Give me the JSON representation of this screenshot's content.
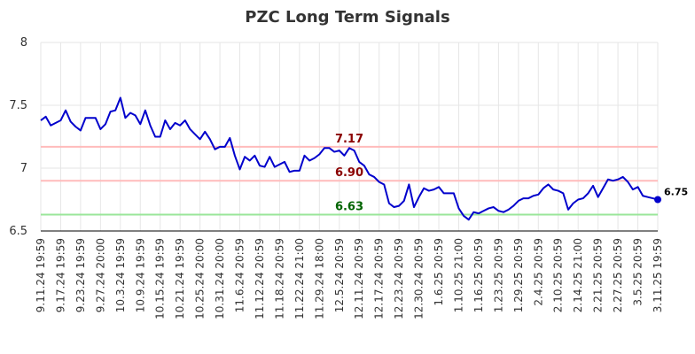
{
  "chart_data": {
    "type": "line",
    "title": "PZC Long Term Signals",
    "xlabel": "",
    "ylabel": "",
    "ylim": [
      6.5,
      8
    ],
    "y_ticks": [
      "6.5",
      "7",
      "7.5",
      "8"
    ],
    "x_tick_labels": [
      "9.11.24 19:59",
      "9.17.24 19:59",
      "9.23.24 19:59",
      "9.27.24 20:00",
      "10.3.24 19:59",
      "10.9.24 19:59",
      "10.15.24 19:59",
      "10.21.24 19:59",
      "10.25.24 20:00",
      "10.31.24 20:00",
      "11.6.24 20:59",
      "11.12.24 20:59",
      "11.18.24 20:59",
      "11.22.24 21:00",
      "11.29.24 18:00",
      "12.5.24 20:59",
      "12.11.24 20:59",
      "12.17.24 20:59",
      "12.23.24 20:59",
      "12.30.24 20:59",
      "1.6.25 20:59",
      "1.10.25 21:00",
      "1.16.25 20:59",
      "1.23.25 20:59",
      "1.29.25 20:59",
      "2.4.25 20:59",
      "2.10.25 20:59",
      "2.14.25 21:00",
      "2.21.25 20:59",
      "2.27.25 20:59",
      "3.5.25 20:59",
      "3.11.25 19:59"
    ],
    "grid": true,
    "series": [
      {
        "color": "#0000cc",
        "values": [
          7.38,
          7.41,
          7.34,
          7.36,
          7.38,
          7.46,
          7.37,
          7.33,
          7.3,
          7.4,
          7.4,
          7.4,
          7.31,
          7.35,
          7.45,
          7.46,
          7.56,
          7.4,
          7.44,
          7.42,
          7.35,
          7.46,
          7.34,
          7.25,
          7.25,
          7.38,
          7.31,
          7.36,
          7.34,
          7.38,
          7.31,
          7.27,
          7.23,
          7.29,
          7.23,
          7.15,
          7.17,
          7.17,
          7.24,
          7.1,
          6.99,
          7.09,
          7.06,
          7.1,
          7.02,
          7.01,
          7.09,
          7.01,
          7.03,
          7.05,
          6.97,
          6.98,
          6.98,
          7.1,
          7.06,
          7.08,
          7.11,
          7.16,
          7.16,
          7.13,
          7.14,
          7.1,
          7.16,
          7.14,
          7.05,
          7.02,
          6.95,
          6.93,
          6.89,
          6.87,
          6.72,
          6.69,
          6.7,
          6.74,
          6.87,
          6.69,
          6.77,
          6.84,
          6.82,
          6.83,
          6.85,
          6.8,
          6.8,
          6.8,
          6.68,
          6.62,
          6.59,
          6.65,
          6.64,
          6.66,
          6.68,
          6.69,
          6.66,
          6.65,
          6.67,
          6.7,
          6.74,
          6.76,
          6.76,
          6.78,
          6.79,
          6.84,
          6.87,
          6.83,
          6.82,
          6.8,
          6.67,
          6.72,
          6.75,
          6.76,
          6.8,
          6.86,
          6.77,
          6.84,
          6.91,
          6.9,
          6.91,
          6.93,
          6.89,
          6.83,
          6.85,
          6.78,
          6.77,
          6.76,
          6.75
        ]
      }
    ],
    "reference_lines": [
      {
        "value": 7.17,
        "label": "7.17",
        "line_color": "#ffbbbb",
        "label_color": "#8b0000"
      },
      {
        "value": 6.9,
        "label": "6.90",
        "line_color": "#ffbbbb",
        "label_color": "#8b0000"
      },
      {
        "value": 6.63,
        "label": "6.63",
        "line_color": "#99e699",
        "label_color": "#006400"
      }
    ],
    "last_value_label": "6.75",
    "colors": {
      "line": "#0000cc",
      "last_point": "#0000cc",
      "grid": "#e6e6e6",
      "axis": "#000000",
      "title": "#333333"
    }
  }
}
